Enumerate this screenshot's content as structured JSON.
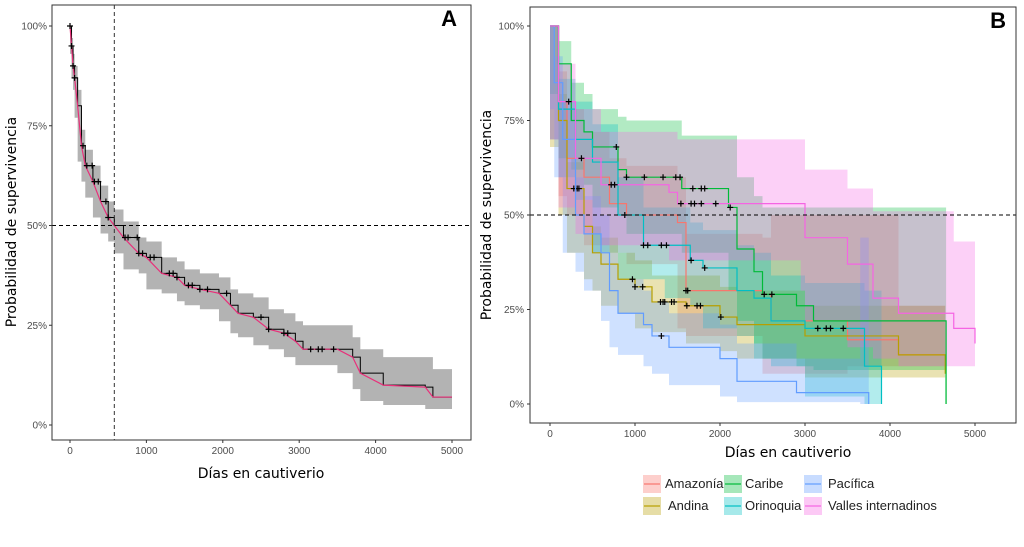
{
  "chart_data": [
    {
      "type": "line",
      "subtype": "kaplan-meier",
      "panel_label": "A",
      "xlabel": "Días en cautiverio",
      "ylabel": "Probabilidad de supervivencia",
      "xlim": [
        0,
        5000
      ],
      "ylim": [
        0,
        1
      ],
      "x_ticks": [
        "0",
        "1000",
        "2000",
        "3000",
        "4000",
        "5000"
      ],
      "y_ticks": [
        "0%",
        "25%",
        "50%",
        "75%",
        "100%"
      ],
      "grid": false,
      "reference_lines": {
        "horizontal_y": 0.5,
        "vertical_x": 580
      },
      "colors": {
        "band": "#b3b3b3",
        "step": "#000000",
        "smooth": "#e8307a"
      },
      "series": [
        {
          "points": [
            [
              0,
              1.0,
              1.0,
              1.0
            ],
            [
              20,
              0.95,
              0.93,
              0.97
            ],
            [
              40,
              0.9,
              0.87,
              0.93
            ],
            [
              60,
              0.87,
              0.84,
              0.9
            ],
            [
              100,
              0.8,
              0.77,
              0.84
            ],
            [
              150,
              0.7,
              0.66,
              0.74
            ],
            [
              200,
              0.65,
              0.61,
              0.69
            ],
            [
              300,
              0.61,
              0.57,
              0.65
            ],
            [
              400,
              0.56,
              0.52,
              0.6
            ],
            [
              500,
              0.52,
              0.48,
              0.56
            ],
            [
              580,
              0.5,
              0.46,
              0.54
            ],
            [
              700,
              0.47,
              0.43,
              0.51
            ],
            [
              900,
              0.43,
              0.39,
              0.47
            ],
            [
              1000,
              0.42,
              0.38,
              0.46
            ],
            [
              1200,
              0.38,
              0.34,
              0.42
            ],
            [
              1400,
              0.37,
              0.33,
              0.41
            ],
            [
              1500,
              0.35,
              0.31,
              0.39
            ],
            [
              1700,
              0.34,
              0.3,
              0.38
            ],
            [
              1950,
              0.33,
              0.29,
              0.37
            ],
            [
              2100,
              0.3,
              0.26,
              0.34
            ],
            [
              2200,
              0.28,
              0.23,
              0.33
            ],
            [
              2400,
              0.27,
              0.22,
              0.32
            ],
            [
              2600,
              0.24,
              0.2,
              0.29
            ],
            [
              2800,
              0.23,
              0.19,
              0.28
            ],
            [
              2950,
              0.21,
              0.17,
              0.26
            ],
            [
              3050,
              0.19,
              0.15,
              0.25
            ],
            [
              3500,
              0.19,
              0.15,
              0.25
            ],
            [
              3700,
              0.17,
              0.13,
              0.22
            ],
            [
              3800,
              0.13,
              0.09,
              0.19
            ],
            [
              4100,
              0.1,
              0.06,
              0.17
            ],
            [
              4650,
              0.095,
              0.05,
              0.17
            ],
            [
              4750,
              0.07,
              0.04,
              0.14
            ],
            [
              5000,
              0.07,
              0.04,
              0.14
            ]
          ],
          "censored": [
            0,
            20,
            40,
            60,
            170,
            220,
            290,
            320,
            370,
            470,
            500,
            720,
            760,
            880,
            900,
            950,
            1050,
            1100,
            1300,
            1350,
            1400,
            1550,
            1600,
            1700,
            1800,
            2050,
            2500,
            2600,
            2800,
            2850,
            3150,
            3250,
            3300,
            3450
          ]
        }
      ]
    },
    {
      "type": "line",
      "subtype": "kaplan-meier",
      "panel_label": "B",
      "xlabel": "Días en cautiverio",
      "ylabel": "Probabilidad de supervivencia",
      "xlim": [
        0,
        5000
      ],
      "ylim": [
        0,
        1
      ],
      "x_ticks": [
        "0",
        "1000",
        "2000",
        "3000",
        "4000",
        "5000"
      ],
      "y_ticks": [
        "0%",
        "25%",
        "50%",
        "75%",
        "100%"
      ],
      "grid": false,
      "reference_lines": {
        "horizontal_y": 0.5
      },
      "legend_position": "bottom",
      "series": [
        {
          "name": "Amazonía",
          "color": "#F8766D",
          "points": [
            [
              0,
              1,
              1,
              1
            ],
            [
              100,
              0.8,
              0.7,
              0.88
            ],
            [
              200,
              0.65,
              0.55,
              0.78
            ],
            [
              400,
              0.6,
              0.5,
              0.72
            ],
            [
              700,
              0.53,
              0.42,
              0.65
            ],
            [
              900,
              0.5,
              0.4,
              0.63
            ],
            [
              1500,
              0.48,
              0.37,
              0.6
            ],
            [
              1600,
              0.3,
              0.2,
              0.45
            ],
            [
              2500,
              0.29,
              0.18,
              0.44
            ],
            [
              2600,
              0.22,
              0.08,
              0.5
            ],
            [
              3500,
              0.17,
              0.08,
              0.5
            ],
            [
              4100,
              0.13,
              0.1,
              0.26
            ],
            [
              4650,
              0.13,
              0.1,
              0.26
            ]
          ],
          "censored": [
            1600,
            1620
          ]
        },
        {
          "name": "Andina",
          "color": "#B79F00",
          "points": [
            [
              0,
              1,
              1,
              1
            ],
            [
              100,
              0.75,
              0.68,
              0.82
            ],
            [
              200,
              0.57,
              0.5,
              0.64
            ],
            [
              400,
              0.47,
              0.4,
              0.54
            ],
            [
              500,
              0.4,
              0.33,
              0.47
            ],
            [
              600,
              0.37,
              0.3,
              0.44
            ],
            [
              800,
              0.33,
              0.26,
              0.4
            ],
            [
              1000,
              0.31,
              0.24,
              0.38
            ],
            [
              1200,
              0.27,
              0.2,
              0.34
            ],
            [
              1600,
              0.26,
              0.19,
              0.34
            ],
            [
              2000,
              0.23,
              0.16,
              0.31
            ],
            [
              2200,
              0.21,
              0.14,
              0.3
            ],
            [
              3000,
              0.18,
              0.12,
              0.26
            ],
            [
              4100,
              0.13,
              0.07,
              0.26
            ],
            [
              4650,
              0.08,
              0.07,
              0.26
            ]
          ],
          "censored": [
            280,
            320,
            340,
            970,
            1000,
            1090,
            1300,
            1330,
            1350,
            1430,
            1460,
            1610,
            1730,
            1770,
            2010
          ]
        },
        {
          "name": "Caribe",
          "color": "#00BA38",
          "points": [
            [
              0,
              1,
              1,
              1
            ],
            [
              100,
              0.9,
              0.82,
              0.96
            ],
            [
              250,
              0.75,
              0.65,
              0.85
            ],
            [
              400,
              0.72,
              0.62,
              0.82
            ],
            [
              500,
              0.68,
              0.58,
              0.78
            ],
            [
              800,
              0.62,
              0.52,
              0.76
            ],
            [
              900,
              0.6,
              0.5,
              0.75
            ],
            [
              1550,
              0.57,
              0.45,
              0.71
            ],
            [
              2100,
              0.52,
              0.4,
              0.71
            ],
            [
              2200,
              0.41,
              0.3,
              0.6
            ],
            [
              2400,
              0.35,
              0.22,
              0.55
            ],
            [
              2500,
              0.29,
              0.16,
              0.52
            ],
            [
              2900,
              0.26,
              0.12,
              0.52
            ],
            [
              3100,
              0.22,
              0.1,
              0.52
            ],
            [
              4650,
              0.22,
              0.09,
              0.52
            ],
            [
              4660,
              0,
              0,
              0
            ]
          ],
          "censored": [
            780,
            900,
            1110,
            1330,
            1480,
            1530,
            1680,
            1780,
            1820,
            2120,
            2520,
            2610
          ]
        },
        {
          "name": "Orinoquia",
          "color": "#00BFC4",
          "points": [
            [
              0,
              1,
              1,
              1
            ],
            [
              100,
              0.78,
              0.7,
              0.86
            ],
            [
              300,
              0.7,
              0.6,
              0.8
            ],
            [
              500,
              0.64,
              0.54,
              0.74
            ],
            [
              800,
              0.5,
              0.4,
              0.6
            ],
            [
              1100,
              0.42,
              0.33,
              0.52
            ],
            [
              1350,
              0.42,
              0.33,
              0.52
            ],
            [
              1650,
              0.38,
              0.28,
              0.48
            ],
            [
              1800,
              0.36,
              0.26,
              0.46
            ],
            [
              2200,
              0.3,
              0.2,
              0.42
            ],
            [
              2400,
              0.28,
              0.18,
              0.4
            ],
            [
              2600,
              0.22,
              0.12,
              0.34
            ],
            [
              3000,
              0.2,
              0.1,
              0.32
            ],
            [
              3700,
              0.1,
              0.02,
              0.3
            ],
            [
              3900,
              0,
              0,
              0
            ]
          ],
          "censored": [
            880,
            1100,
            1150,
            1310,
            1370,
            1660,
            1820,
            3150,
            3250,
            3300,
            3450
          ]
        },
        {
          "name": "Pacífica",
          "color": "#619CFF",
          "points": [
            [
              0,
              1,
              1,
              1
            ],
            [
              50,
              0.85,
              0.78,
              0.92
            ],
            [
              150,
              0.7,
              0.6,
              0.8
            ],
            [
              300,
              0.5,
              0.4,
              0.6
            ],
            [
              400,
              0.45,
              0.35,
              0.55
            ],
            [
              600,
              0.4,
              0.3,
              0.5
            ],
            [
              700,
              0.3,
              0.22,
              0.4
            ],
            [
              800,
              0.24,
              0.15,
              0.33
            ],
            [
              1100,
              0.21,
              0.13,
              0.3
            ],
            [
              1200,
              0.18,
              0.1,
              0.27
            ],
            [
              1400,
              0.15,
              0.08,
              0.24
            ],
            [
              2000,
              0.12,
              0.05,
              0.21
            ],
            [
              2200,
              0.06,
              0.02,
              0.16
            ],
            [
              2900,
              0.03,
              0.005,
              0.12
            ],
            [
              3650,
              0.03,
              0.005,
              0.44
            ],
            [
              3750,
              0,
              0,
              0
            ]
          ],
          "censored": [
            1310
          ]
        },
        {
          "name": "Valles internadinos",
          "color": "#F564E3",
          "points": [
            [
              0,
              1,
              1,
              1
            ],
            [
              100,
              0.8,
              0.7,
              0.9
            ],
            [
              300,
              0.65,
              0.52,
              0.78
            ],
            [
              600,
              0.58,
              0.45,
              0.72
            ],
            [
              1400,
              0.56,
              0.42,
              0.72
            ],
            [
              1500,
              0.53,
              0.38,
              0.7
            ],
            [
              2200,
              0.53,
              0.38,
              0.7
            ],
            [
              2950,
              0.53,
              0.38,
              0.7
            ],
            [
              3000,
              0.44,
              0.3,
              0.62
            ],
            [
              3500,
              0.37,
              0.22,
              0.57
            ],
            [
              3800,
              0.28,
              0.15,
              0.51
            ],
            [
              4100,
              0.24,
              0.12,
              0.51
            ],
            [
              4750,
              0.2,
              0.1,
              0.43
            ],
            [
              5000,
              0.16,
              0.1,
              0.43
            ]
          ],
          "censored": [
            220,
            370,
            720,
            760,
            1540,
            1660,
            1700,
            1780,
            1950
          ]
        }
      ]
    }
  ]
}
